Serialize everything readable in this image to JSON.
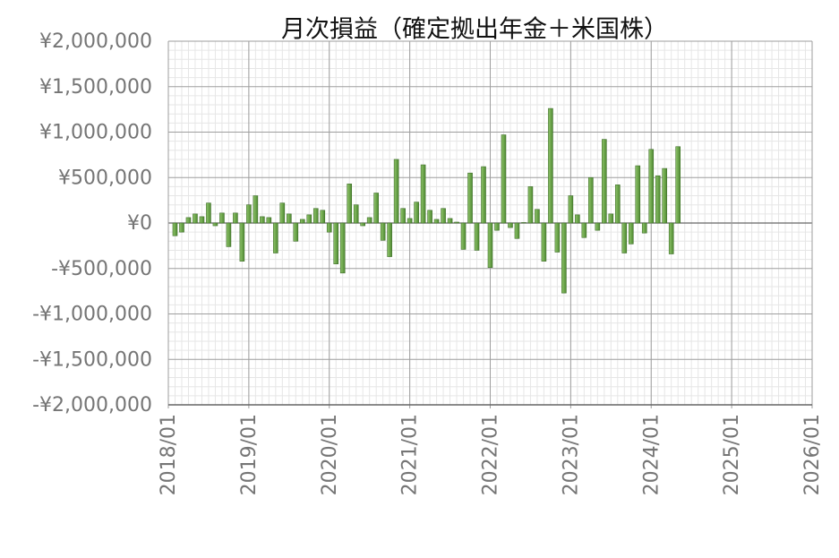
{
  "chart_data": {
    "type": "bar",
    "title": "月次損益（確定拠出年金＋米国株）",
    "color": "#6aa84f",
    "edge_color": "#3f6e2a",
    "grid": true,
    "minor_grid": true,
    "x": [
      "2018/02",
      "2018/03",
      "2018/04",
      "2018/05",
      "2018/06",
      "2018/07",
      "2018/08",
      "2018/09",
      "2018/10",
      "2018/11",
      "2018/12",
      "2019/01",
      "2019/02",
      "2019/03",
      "2019/04",
      "2019/05",
      "2019/06",
      "2019/07",
      "2019/08",
      "2019/09",
      "2019/10",
      "2019/11",
      "2019/12",
      "2020/01",
      "2020/02",
      "2020/03",
      "2020/04",
      "2020/05",
      "2020/06",
      "2020/07",
      "2020/08",
      "2020/09",
      "2020/10",
      "2020/11",
      "2020/12",
      "2021/01",
      "2021/02",
      "2021/03",
      "2021/04",
      "2021/05",
      "2021/06",
      "2021/07",
      "2021/08",
      "2021/09",
      "2021/10",
      "2021/11",
      "2021/12",
      "2022/01",
      "2022/02",
      "2022/03",
      "2022/04",
      "2022/05",
      "2022/06",
      "2022/07",
      "2022/08",
      "2022/09",
      "2022/10",
      "2022/11",
      "2022/12",
      "2023/01",
      "2023/02",
      "2023/03",
      "2023/04",
      "2023/05",
      "2023/06",
      "2023/07",
      "2023/08",
      "2023/09",
      "2023/10",
      "2023/11",
      "2023/12",
      "2024/01",
      "2024/02",
      "2024/03",
      "2024/04",
      "2024/05"
    ],
    "values": [
      -140000,
      -100000,
      60000,
      100000,
      70000,
      220000,
      -30000,
      110000,
      -260000,
      110000,
      -420000,
      200000,
      300000,
      70000,
      60000,
      -330000,
      220000,
      100000,
      -200000,
      40000,
      90000,
      160000,
      140000,
      -100000,
      -450000,
      -550000,
      430000,
      200000,
      -30000,
      60000,
      330000,
      -190000,
      -370000,
      700000,
      160000,
      50000,
      230000,
      640000,
      140000,
      40000,
      160000,
      50000,
      10000,
      -290000,
      550000,
      -300000,
      620000,
      -490000,
      -80000,
      970000,
      -50000,
      -170000,
      5000,
      400000,
      150000,
      -420000,
      1260000,
      -320000,
      -770000,
      300000,
      90000,
      -160000,
      500000,
      -80000,
      920000,
      100000,
      420000,
      -330000,
      -230000,
      630000,
      -110000,
      810000,
      520000,
      600000,
      -340000,
      840000
    ],
    "xlim": [
      "2018/01",
      "2026/01"
    ],
    "xticks": [
      "2018/01",
      "2019/01",
      "2020/01",
      "2021/01",
      "2022/01",
      "2023/01",
      "2024/01",
      "2025/01",
      "2026/01"
    ],
    "ylim": [
      -2000000,
      2000000
    ],
    "yticks": [
      {
        "value": -2000000,
        "label": "-¥2,000,000"
      },
      {
        "value": -1500000,
        "label": "-¥1,500,000"
      },
      {
        "value": -1000000,
        "label": "-¥1,000,000"
      },
      {
        "value": -500000,
        "label": "-¥500,000"
      },
      {
        "value": 0,
        "label": "¥0"
      },
      {
        "value": 500000,
        "label": "¥500,000"
      },
      {
        "value": 1000000,
        "label": "¥1,000,000"
      },
      {
        "value": 1500000,
        "label": "¥1,500,000"
      },
      {
        "value": 2000000,
        "label": "¥2,000,000"
      }
    ]
  }
}
